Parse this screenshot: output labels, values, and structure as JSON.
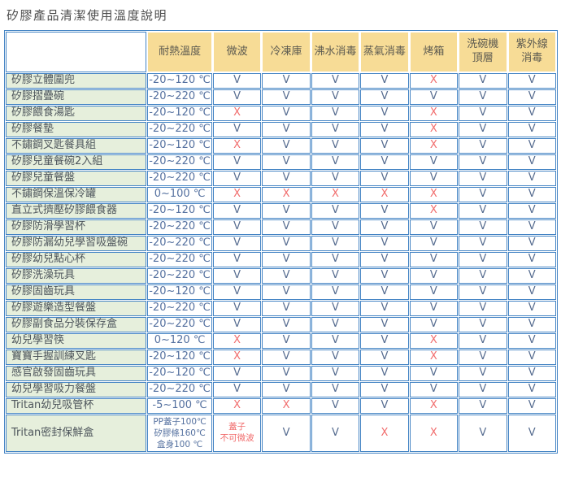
{
  "title": "矽膠產品清潔使用溫度說明",
  "colors": {
    "header_bg": "#f7dc96",
    "product_bg": "#e6efdc",
    "border": "#4484c4",
    "check": "#566c90",
    "cross": "#f16c6c",
    "temp_text": "#54709f",
    "product_text": "#4e565c",
    "header_text": "#5c5a50",
    "title_text": "#4c4c4c"
  },
  "chart_data": {
    "type": "table",
    "title": "矽膠產品清潔使用溫度說明",
    "columns": [
      "",
      "耐熱溫度",
      "微波",
      "冷凍庫",
      "沸水消毒",
      "蒸氣消毒",
      "烤箱",
      "洗碗機\n頂層",
      "紫外線\n消毒"
    ],
    "allowed_symbol": "V",
    "not_allowed_symbol": "X",
    "rows": [
      {
        "name": "矽膠立體圍兜",
        "temp": "-20~120 ℃",
        "marks": [
          "V",
          "V",
          "V",
          "V",
          "X",
          "V",
          "V"
        ]
      },
      {
        "name": "矽膠摺疊碗",
        "temp": "-20~220 ℃",
        "marks": [
          "V",
          "V",
          "V",
          "V",
          "V",
          "V",
          "V"
        ]
      },
      {
        "name": "矽膠餵食湯匙",
        "temp": "-20~120 ℃",
        "marks": [
          "X",
          "V",
          "V",
          "V",
          "X",
          "V",
          "V"
        ]
      },
      {
        "name": "矽膠餐墊",
        "temp": "-20~220 ℃",
        "marks": [
          "V",
          "V",
          "V",
          "V",
          "X",
          "V",
          "V"
        ]
      },
      {
        "name": "不鏽鋼叉匙餐具組",
        "temp": "-20~120 ℃",
        "marks": [
          "X",
          "V",
          "V",
          "V",
          "X",
          "V",
          "V"
        ]
      },
      {
        "name": "矽膠兒童餐碗2入組",
        "temp": "-20~220 ℃",
        "marks": [
          "V",
          "V",
          "V",
          "V",
          "V",
          "V",
          "V"
        ]
      },
      {
        "name": "矽膠兒童餐盤",
        "temp": "-20~220 ℃",
        "marks": [
          "V",
          "V",
          "V",
          "V",
          "V",
          "V",
          "V"
        ]
      },
      {
        "name": "不鏽鋼保溫保冷罐",
        "temp": "0~100 ℃",
        "marks": [
          "X",
          "X",
          "X",
          "X",
          "X",
          "V",
          "V"
        ]
      },
      {
        "name": "直立式擠壓矽膠餵食器",
        "temp": "-20~120 ℃",
        "marks": [
          "V",
          "V",
          "V",
          "V",
          "X",
          "V",
          "V"
        ]
      },
      {
        "name": "矽膠防滑學習杯",
        "temp": "-20~220 ℃",
        "marks": [
          "V",
          "V",
          "V",
          "V",
          "V",
          "V",
          "V"
        ]
      },
      {
        "name": "矽膠防漏幼兒學習吸盤碗",
        "temp": "-20~220 ℃",
        "marks": [
          "V",
          "V",
          "V",
          "V",
          "V",
          "V",
          "V"
        ]
      },
      {
        "name": "矽膠幼兒點心杯",
        "temp": "-20~220 ℃",
        "marks": [
          "V",
          "V",
          "V",
          "V",
          "V",
          "V",
          "V"
        ]
      },
      {
        "name": "矽膠洗澡玩具",
        "temp": "-20~220 ℃",
        "marks": [
          "V",
          "V",
          "V",
          "V",
          "V",
          "V",
          "V"
        ]
      },
      {
        "name": "矽膠固齒玩具",
        "temp": "-20~120 ℃",
        "marks": [
          "V",
          "V",
          "V",
          "V",
          "V",
          "V",
          "V"
        ]
      },
      {
        "name": "矽膠遊樂造型餐盤",
        "temp": "-20~220 ℃",
        "marks": [
          "V",
          "V",
          "V",
          "V",
          "V",
          "V",
          "V"
        ]
      },
      {
        "name": "矽膠副食品分裝保存盒",
        "temp": "-20~220 ℃",
        "marks": [
          "V",
          "V",
          "V",
          "V",
          "V",
          "V",
          "V"
        ]
      },
      {
        "name": "幼兒學習筷",
        "temp": "0~120 ℃",
        "marks": [
          "X",
          "V",
          "V",
          "V",
          "X",
          "V",
          "V"
        ]
      },
      {
        "name": "寶寶手握訓練叉匙",
        "temp": "-20~120 ℃",
        "marks": [
          "X",
          "V",
          "V",
          "V",
          "X",
          "V",
          "V"
        ]
      },
      {
        "name": "感官啟發固齒玩具",
        "temp": "-20~120 ℃",
        "marks": [
          "V",
          "V",
          "V",
          "V",
          "V",
          "V",
          "V"
        ]
      },
      {
        "name": "幼兒學習吸力餐盤",
        "temp": "-20~220 ℃",
        "marks": [
          "V",
          "V",
          "V",
          "V",
          "V",
          "V",
          "V"
        ]
      },
      {
        "name": "Tritan幼兒吸管杯",
        "temp": "-5~100 ℃",
        "marks": [
          "X",
          "X",
          "V",
          "V",
          "X",
          "V",
          "V"
        ]
      },
      {
        "name": "Tritan密封保鮮盒",
        "temp": "PP蓋子100℃\n矽膠條160℃\n盒身100 ℃",
        "marks": [
          "蓋子\n不可微波",
          "V",
          "V",
          "X",
          "X",
          "V",
          "V"
        ]
      }
    ]
  }
}
